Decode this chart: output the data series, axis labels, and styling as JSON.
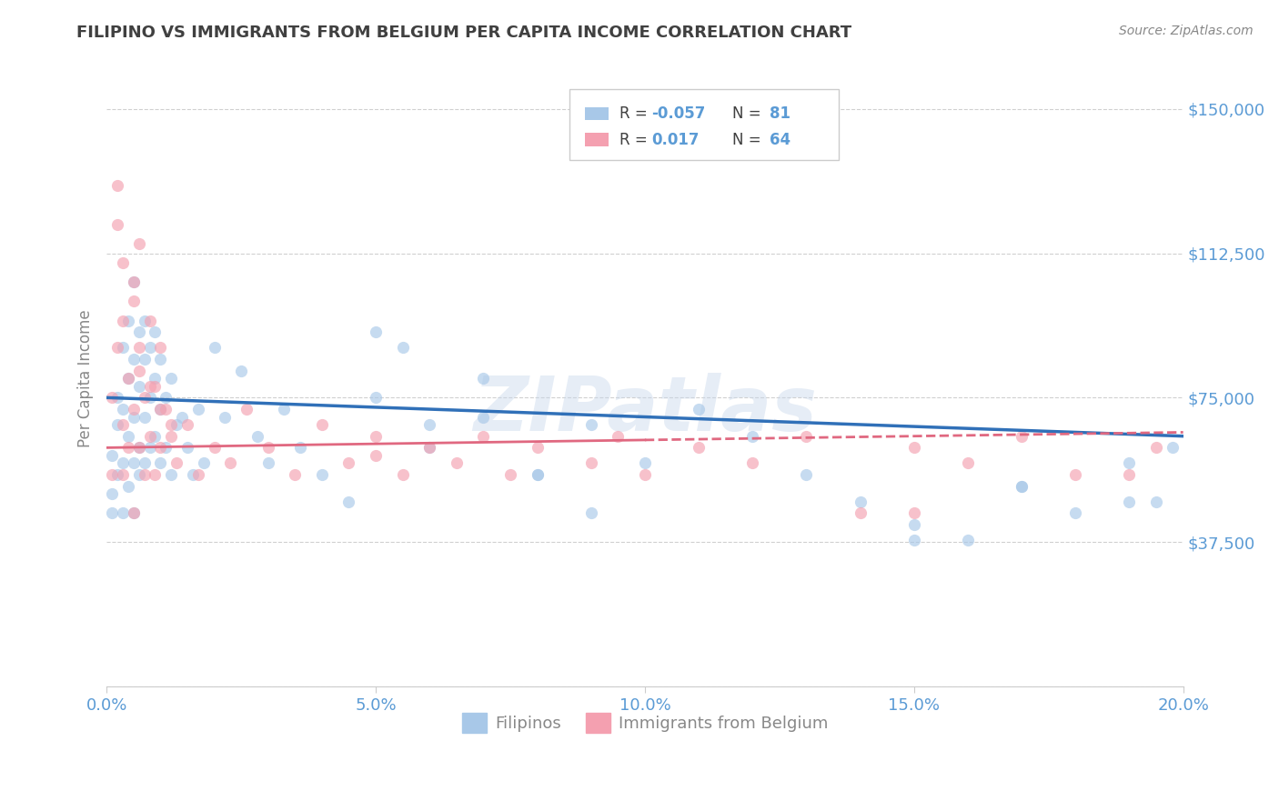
{
  "title": "FILIPINO VS IMMIGRANTS FROM BELGIUM PER CAPITA INCOME CORRELATION CHART",
  "source_text": "Source: ZipAtlas.com",
  "ylabel": "Per Capita Income",
  "xlim": [
    0.0,
    0.2
  ],
  "ylim": [
    0,
    160000
  ],
  "yticks": [
    0,
    37500,
    75000,
    112500,
    150000
  ],
  "ytick_labels": [
    "",
    "$37,500",
    "$75,000",
    "$112,500",
    "$150,000"
  ],
  "xticks": [
    0.0,
    0.05,
    0.1,
    0.15,
    0.2
  ],
  "xtick_labels": [
    "0.0%",
    "5.0%",
    "10.0%",
    "15.0%",
    "20.0%"
  ],
  "filipinos_color": "#a8c8e8",
  "belgium_color": "#f4a0b0",
  "trend_blue_color": "#3070b8",
  "trend_pink_color": "#e06880",
  "legend_R1": "-0.057",
  "legend_N1": "81",
  "legend_R2": "0.017",
  "legend_N2": "64",
  "legend_label1": "Filipinos",
  "legend_label2": "Immigrants from Belgium",
  "watermark_text": "ZIPatlas",
  "title_color": "#404040",
  "tick_label_color": "#5b9bd5",
  "background_color": "#ffffff",
  "filipinos_x": [
    0.001,
    0.001,
    0.001,
    0.002,
    0.002,
    0.002,
    0.003,
    0.003,
    0.003,
    0.003,
    0.004,
    0.004,
    0.004,
    0.004,
    0.005,
    0.005,
    0.005,
    0.005,
    0.005,
    0.006,
    0.006,
    0.006,
    0.006,
    0.007,
    0.007,
    0.007,
    0.007,
    0.008,
    0.008,
    0.008,
    0.009,
    0.009,
    0.009,
    0.01,
    0.01,
    0.01,
    0.011,
    0.011,
    0.012,
    0.012,
    0.013,
    0.014,
    0.015,
    0.016,
    0.017,
    0.018,
    0.02,
    0.022,
    0.025,
    0.028,
    0.03,
    0.033,
    0.036,
    0.04,
    0.045,
    0.05,
    0.055,
    0.06,
    0.07,
    0.08,
    0.09,
    0.1,
    0.11,
    0.12,
    0.13,
    0.14,
    0.15,
    0.16,
    0.17,
    0.18,
    0.19,
    0.195,
    0.198,
    0.05,
    0.06,
    0.07,
    0.08,
    0.09,
    0.15,
    0.17,
    0.19
  ],
  "filipinos_y": [
    50000,
    60000,
    45000,
    68000,
    55000,
    75000,
    72000,
    58000,
    88000,
    45000,
    65000,
    80000,
    52000,
    95000,
    70000,
    85000,
    58000,
    105000,
    45000,
    78000,
    92000,
    62000,
    55000,
    85000,
    70000,
    58000,
    95000,
    75000,
    88000,
    62000,
    80000,
    65000,
    92000,
    72000,
    85000,
    58000,
    75000,
    62000,
    80000,
    55000,
    68000,
    70000,
    62000,
    55000,
    72000,
    58000,
    88000,
    70000,
    82000,
    65000,
    58000,
    72000,
    62000,
    55000,
    48000,
    75000,
    88000,
    62000,
    70000,
    55000,
    68000,
    58000,
    72000,
    65000,
    55000,
    48000,
    42000,
    38000,
    52000,
    45000,
    58000,
    48000,
    62000,
    92000,
    68000,
    80000,
    55000,
    45000,
    38000,
    52000,
    48000
  ],
  "belgium_x": [
    0.001,
    0.001,
    0.002,
    0.002,
    0.003,
    0.003,
    0.003,
    0.004,
    0.004,
    0.005,
    0.005,
    0.005,
    0.006,
    0.006,
    0.006,
    0.007,
    0.007,
    0.008,
    0.008,
    0.009,
    0.009,
    0.01,
    0.01,
    0.011,
    0.012,
    0.013,
    0.015,
    0.017,
    0.02,
    0.023,
    0.026,
    0.03,
    0.035,
    0.04,
    0.045,
    0.05,
    0.055,
    0.06,
    0.065,
    0.07,
    0.075,
    0.08,
    0.09,
    0.095,
    0.1,
    0.11,
    0.12,
    0.13,
    0.14,
    0.15,
    0.16,
    0.17,
    0.18,
    0.19,
    0.195,
    0.002,
    0.003,
    0.005,
    0.006,
    0.008,
    0.01,
    0.012,
    0.05,
    0.15
  ],
  "belgium_y": [
    55000,
    75000,
    88000,
    120000,
    68000,
    95000,
    55000,
    80000,
    62000,
    105000,
    72000,
    45000,
    88000,
    62000,
    115000,
    75000,
    55000,
    95000,
    65000,
    78000,
    55000,
    88000,
    62000,
    72000,
    65000,
    58000,
    68000,
    55000,
    62000,
    58000,
    72000,
    62000,
    55000,
    68000,
    58000,
    65000,
    55000,
    62000,
    58000,
    65000,
    55000,
    62000,
    58000,
    65000,
    55000,
    62000,
    58000,
    65000,
    45000,
    62000,
    58000,
    65000,
    55000,
    55000,
    62000,
    130000,
    110000,
    100000,
    82000,
    78000,
    72000,
    68000,
    60000,
    45000
  ]
}
